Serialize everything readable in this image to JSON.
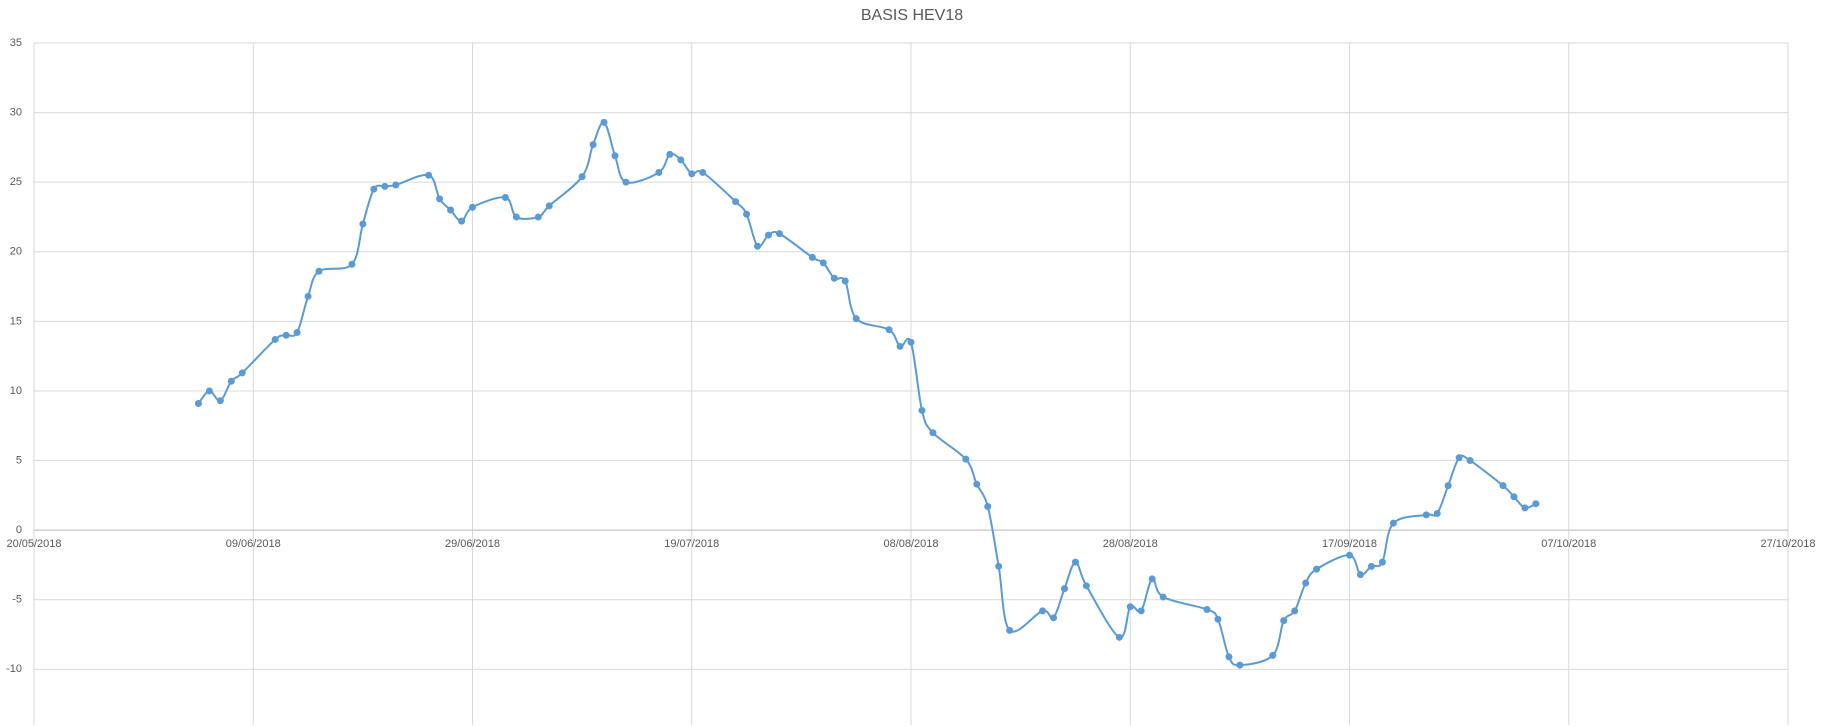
{
  "chart_data": {
    "type": "line",
    "title": "BASIS HEV18",
    "x": [
      "2018-06-04",
      "2018-06-05",
      "2018-06-06",
      "2018-06-07",
      "2018-06-08",
      "2018-06-11",
      "2018-06-12",
      "2018-06-13",
      "2018-06-14",
      "2018-06-15",
      "2018-06-18",
      "2018-06-19",
      "2018-06-20",
      "2018-06-21",
      "2018-06-22",
      "2018-06-25",
      "2018-06-26",
      "2018-06-27",
      "2018-06-28",
      "2018-06-29",
      "2018-07-02",
      "2018-07-03",
      "2018-07-05",
      "2018-07-06",
      "2018-07-09",
      "2018-07-10",
      "2018-07-11",
      "2018-07-12",
      "2018-07-13",
      "2018-07-16",
      "2018-07-17",
      "2018-07-18",
      "2018-07-19",
      "2018-07-20",
      "2018-07-23",
      "2018-07-24",
      "2018-07-25",
      "2018-07-26",
      "2018-07-27",
      "2018-07-30",
      "2018-07-31",
      "2018-08-01",
      "2018-08-02",
      "2018-08-03",
      "2018-08-06",
      "2018-08-07",
      "2018-08-08",
      "2018-08-09",
      "2018-08-10",
      "2018-08-13",
      "2018-08-14",
      "2018-08-15",
      "2018-08-16",
      "2018-08-17",
      "2018-08-20",
      "2018-08-21",
      "2018-08-22",
      "2018-08-23",
      "2018-08-24",
      "2018-08-27",
      "2018-08-28",
      "2018-08-29",
      "2018-08-30",
      "2018-08-31",
      "2018-09-04",
      "2018-09-05",
      "2018-09-06",
      "2018-09-07",
      "2018-09-10",
      "2018-09-11",
      "2018-09-12",
      "2018-09-13",
      "2018-09-14",
      "2018-09-17",
      "2018-09-18",
      "2018-09-19",
      "2018-09-20",
      "2018-09-21",
      "2018-09-24",
      "2018-09-25",
      "2018-09-26",
      "2018-09-27",
      "2018-09-28",
      "2018-10-01",
      "2018-10-02",
      "2018-10-03",
      "2018-10-04"
    ],
    "series": [
      {
        "color": "#5b9bd5",
        "values": [
          9.1,
          10.0,
          9.3,
          10.7,
          11.3,
          13.7,
          14.0,
          14.2,
          16.8,
          18.6,
          19.1,
          22.0,
          24.5,
          24.7,
          24.8,
          25.5,
          23.8,
          23.0,
          22.2,
          23.2,
          23.9,
          22.5,
          22.5,
          23.3,
          25.4,
          27.7,
          29.3,
          26.9,
          25.0,
          25.7,
          27.0,
          26.6,
          25.6,
          25.7,
          23.6,
          22.7,
          20.4,
          21.2,
          21.3,
          19.6,
          19.2,
          18.1,
          17.9,
          15.2,
          14.4,
          13.2,
          13.5,
          8.6,
          7.0,
          5.1,
          3.3,
          1.7,
          -2.6,
          -7.2,
          -5.8,
          -6.3,
          -4.2,
          -2.3,
          -4.0,
          -7.7,
          -5.5,
          -5.8,
          -3.5,
          -4.8,
          -5.7,
          -6.4,
          -9.1,
          -9.7,
          -9.0,
          -6.5,
          -5.8,
          -3.8,
          -2.8,
          -1.8,
          -3.2,
          -2.6,
          -2.3,
          0.5,
          1.1,
          1.2,
          3.2,
          5.2,
          5.0,
          3.2,
          2.4,
          1.6,
          1.9
        ]
      }
    ],
    "xlim": [
      "2018-05-20",
      "2018-10-27"
    ],
    "xticks": [
      {
        "value": "2018-05-20",
        "label": "20/05/2018"
      },
      {
        "value": "2018-06-09",
        "label": "09/06/2018"
      },
      {
        "value": "2018-06-29",
        "label": "29/06/2018"
      },
      {
        "value": "2018-07-19",
        "label": "19/07/2018"
      },
      {
        "value": "2018-08-08",
        "label": "08/08/2018"
      },
      {
        "value": "2018-08-28",
        "label": "28/08/2018"
      },
      {
        "value": "2018-09-17",
        "label": "17/09/2018"
      },
      {
        "value": "2018-10-07",
        "label": "07/10/2018"
      },
      {
        "value": "2018-10-27",
        "label": "27/10/2018"
      }
    ],
    "ylim": [
      -14,
      35
    ],
    "yticks": [
      -10,
      -5,
      0,
      5,
      10,
      15,
      20,
      25,
      30,
      35
    ],
    "grid": true
  }
}
